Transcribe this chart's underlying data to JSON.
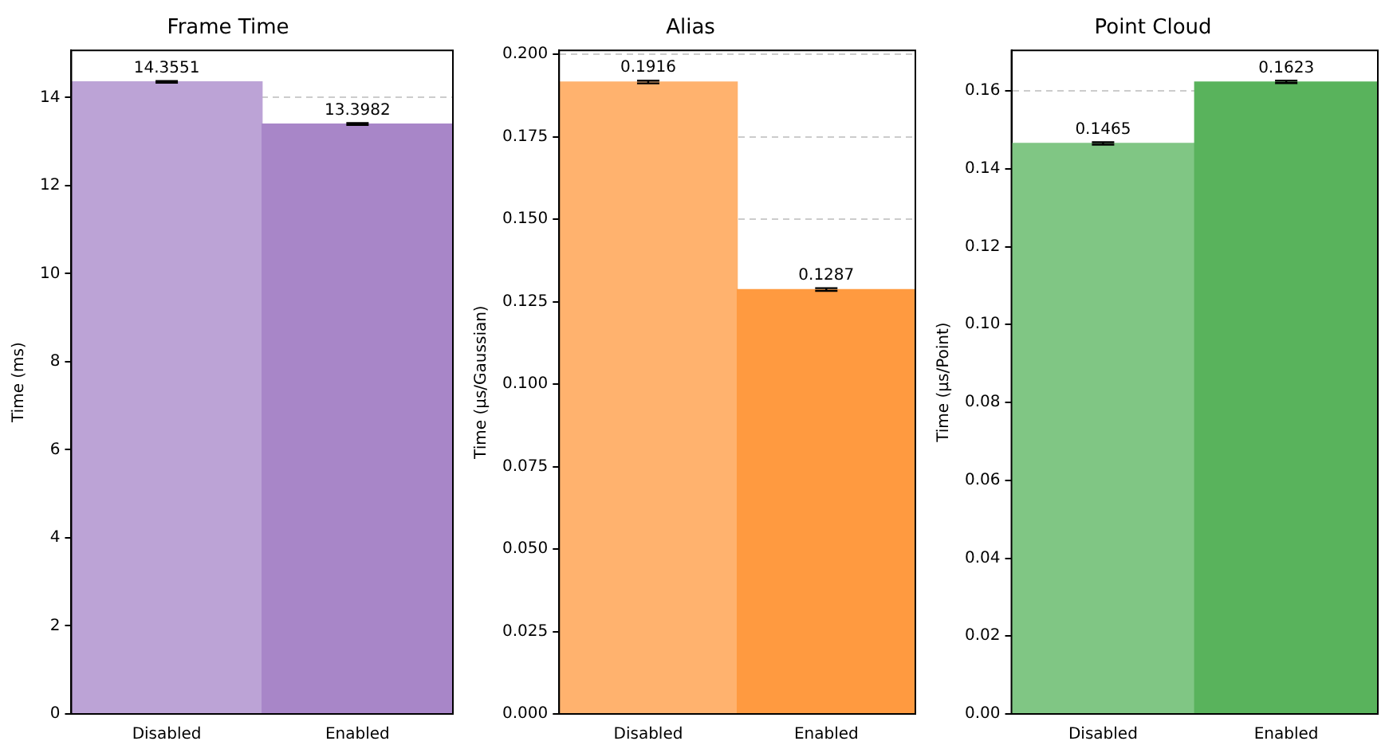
{
  "chart_data": [
    {
      "type": "bar",
      "title": "Frame Time",
      "ylabel": "Time (ms)",
      "categories": [
        "Disabled",
        "Enabled"
      ],
      "values": [
        14.3551,
        13.3982
      ],
      "colors": [
        "#bca3d6",
        "#a886c8"
      ],
      "errors": [
        0.02,
        0.02
      ],
      "ylim": [
        0,
        15.07
      ],
      "yticks": [
        0,
        2,
        4,
        6,
        8,
        10,
        12,
        14
      ],
      "grid": "y",
      "data_labels": true
    },
    {
      "type": "bar",
      "title": "Alias",
      "ylabel": "Time (µs/Gaussian)",
      "categories": [
        "Disabled",
        "Enabled"
      ],
      "values": [
        0.1916,
        0.1287
      ],
      "colors": [
        "#ffb26e",
        "#ff9a40"
      ],
      "errors": [
        0.0004,
        0.0004
      ],
      "ylim": [
        0,
        0.2012
      ],
      "yticks": [
        {
          "value": 0,
          "label": "0.000"
        },
        0.025,
        {
          "value": 0.05,
          "label": "0.050"
        },
        0.075,
        {
          "value": 0.1,
          "label": "0.100"
        },
        0.125,
        {
          "value": 0.15,
          "label": "0.150"
        },
        0.175,
        {
          "value": 0.2,
          "label": "0.200"
        }
      ],
      "grid": "y",
      "data_labels": true
    },
    {
      "type": "bar",
      "title": "Point Cloud",
      "ylabel": "Time (µs/Point)",
      "categories": [
        "Disabled",
        "Enabled"
      ],
      "values": [
        0.1465,
        0.1623
      ],
      "colors": [
        "#80c684",
        "#59b35c"
      ],
      "errors": [
        0.0003,
        0.0003
      ],
      "ylim": [
        0,
        0.1704
      ],
      "yticks": [
        {
          "value": 0,
          "label": "0.00"
        },
        0.02,
        0.04,
        0.06,
        0.08,
        {
          "value": 0.1,
          "label": "0.10"
        },
        0.12,
        0.14,
        0.16
      ],
      "grid": "y",
      "data_labels": true
    }
  ]
}
